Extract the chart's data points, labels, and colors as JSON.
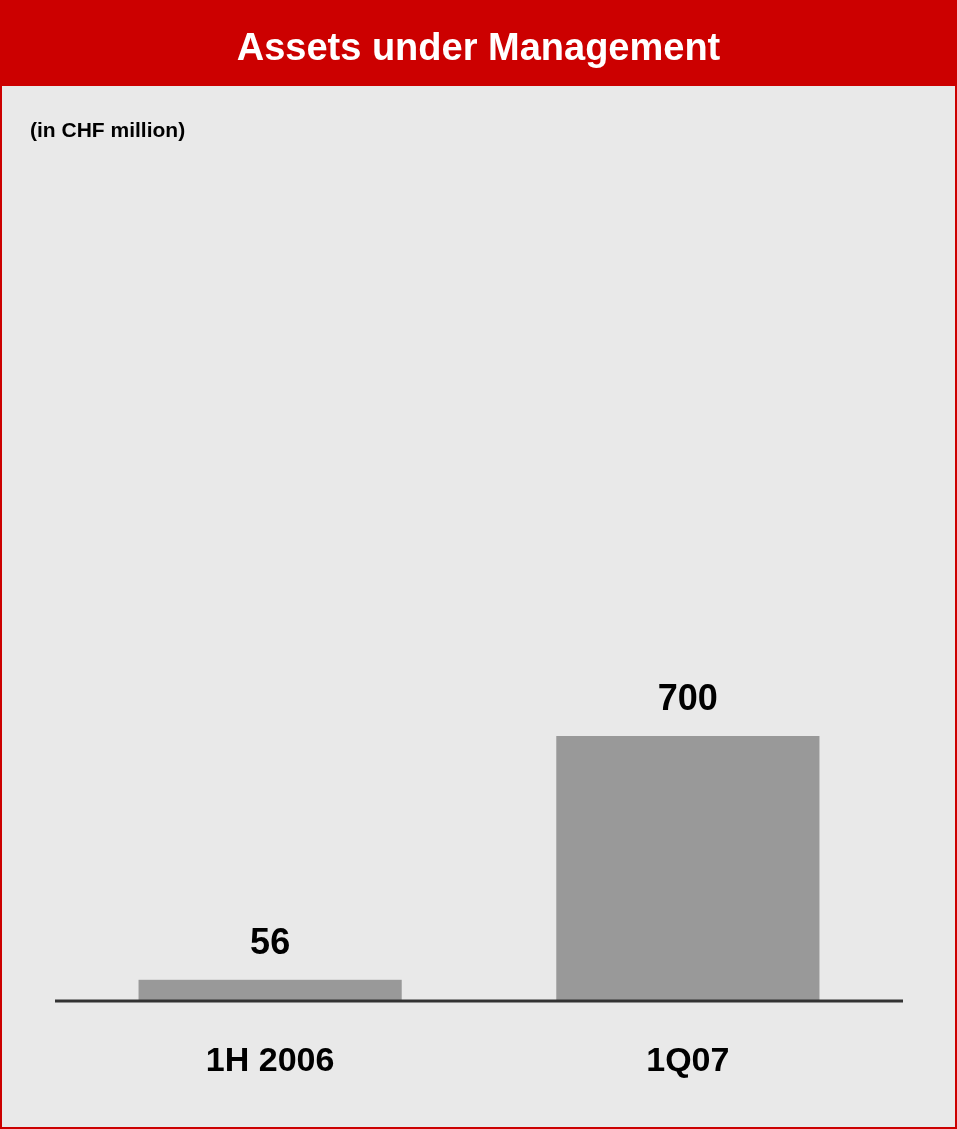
{
  "chart_data": {
    "type": "bar",
    "title": "Assets under Management",
    "subtitle": "(in CHF million)",
    "categories": [
      "1H 2006",
      "1Q07"
    ],
    "values": [
      56,
      700
    ],
    "color": "#999999",
    "data_labels": true
  }
}
